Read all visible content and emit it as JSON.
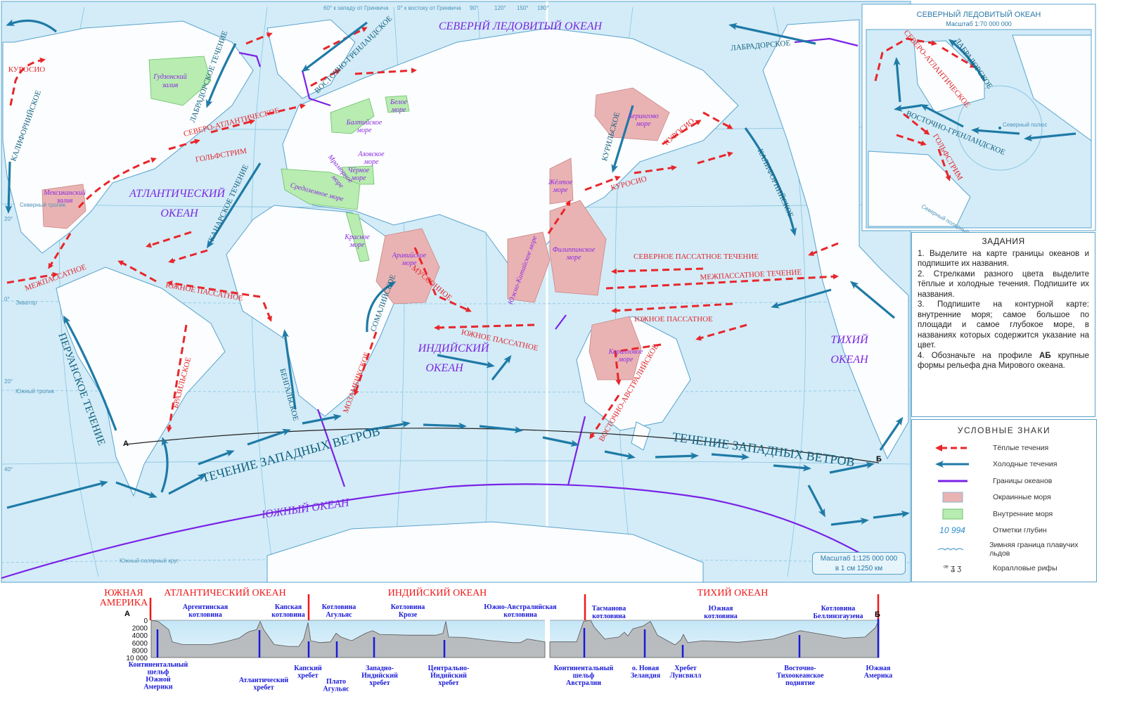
{
  "colors": {
    "warm_current": "#e8262a",
    "cold_current": "#1f7aa6",
    "ocean_boundary": "#7a22e6",
    "marginal_sea": "#eab3b3",
    "inland_sea": "#b8ecb0",
    "water": "#cfe9f6"
  },
  "map": {
    "oceans": {
      "arctic": "СЕВЕРНЙ ЛЕДОВИТЫЙ ОКЕАН",
      "atlantic_1": "АТЛАНТИЧЕСКИЙ",
      "atlantic_2": "ОКЕАН",
      "indian_1": "ИНДИЙСКИЙ",
      "indian_2": "ОКЕАН",
      "pacific_1": "ТИХИЙ",
      "pacific_2": "ОКЕАН",
      "southern": "ЮЖНЫЙ ОКЕАН"
    },
    "warm_currents": [
      "КУРОСИО",
      "СЕВЕРО-АТЛАНТИЧЕСКОЕ",
      "ГОЛЬФСТРИМ",
      "МЕЖПАССАТНОЕ",
      "ЮЖНОЕ ПАССАТНОЕ",
      "БРАЗИЛЬСКОЕ",
      "МУССОННОЕ",
      "ЮЖНОЕ ПАССАТНОЕ",
      "МОЗАМБИКСКОЕ",
      "КУРОСИО",
      "КУРОСИО",
      "СЕВЕРНОЕ ПАССАТНОЕ ТЕЧЕНИЕ",
      "МЕЖПАССАТНОЕ ТЕЧЕНИЕ",
      "ЮЖНОЕ ПАССАТНОЕ",
      "ВОСТОЧНО-АВСТРАЛИЙСКОЕ"
    ],
    "cold_currents": [
      "КАЛИФОРНИЙСКОЕ",
      "ЛАБРАДОРСКОЕ ТЕЧЕНИЕ",
      "ВОСТОЧНО-ГРЕНЛАНДСКОЕ",
      "КАНАРСКОЕ ТЕЧЕНИЕ",
      "ПЕРУАНСКОЕ ТЕЧЕНИЕ",
      "БЕНГАЛЬСКОЕ",
      "СОМАЛИЙСКОЕ",
      "ТЕЧЕНИЕ ЗАПАДНЫХ ВЕТРОВ",
      "ТЕЧЕНИЕ ЗАПАДНЫХ ВЕТРОВ",
      "КУРИЛЬСКОЕ",
      "КАЛИФОРНИЙСКОЕ",
      "ЛАБРАДОРСКОЕ"
    ],
    "seas": {
      "hudson": [
        "Гудзонский",
        "залив"
      ],
      "white": [
        "Белое",
        "море"
      ],
      "baltic": [
        "Балтийское",
        "море"
      ],
      "azov": [
        "Азовское",
        "море"
      ],
      "black": [
        "Чёрное",
        "море"
      ],
      "marmara": [
        "Мраморное",
        "море"
      ],
      "mediterranean": "Средиземное море",
      "mexico": [
        "Мексиканский",
        "залив"
      ],
      "red": [
        "Красное",
        "море"
      ],
      "arabian": [
        "Аравийское",
        "море"
      ],
      "south_china": "Южно-Китайское море",
      "philippine": [
        "Филиппинское",
        "море"
      ],
      "yellow": [
        "Жёлтое",
        "море"
      ],
      "bering": [
        "Берингово",
        "море"
      ],
      "coral": [
        "Коралловое",
        "море"
      ]
    },
    "graticule": {
      "lon_west": "60° к западу от Гринвича",
      "lon_east": "0° к востоку от Гринвича",
      "l90": "90°",
      "l120": "120°",
      "l150": "150°",
      "l180": "180°",
      "equator": "Экватор",
      "n_tropic": "Северный тропик",
      "s_tropic": "Южный тропик",
      "s_polar": "Южный полярный круг",
      "lat20n": "20°",
      "lat0": "0°",
      "lat20s": "20°",
      "lat40s": "40°"
    },
    "profile_points": {
      "a": "А",
      "b": "Б"
    },
    "scale": {
      "line1": "Масштаб 1:125 000 000",
      "line2": "в 1 см 1250 км"
    }
  },
  "inset": {
    "title": "СЕВЕРНЫЙ ЛЕДОВИТЫЙ ОКЕАН",
    "scale": "Масштаб 1:70 000 000",
    "warm": [
      "СЕВЕРО-АТЛАНТИЧЕСКОЕ",
      "ГОЛЬФСТРИМ"
    ],
    "cold": [
      "ЛАБРАДОРСКОЕ",
      "ВОСТОЧНО-ГРЕНЛАНДСКОЕ"
    ],
    "north_pole": "Северный полюс",
    "polar_circle": "Северный полярный круг"
  },
  "tasks": {
    "title": "ЗАДАНИЯ",
    "items": [
      "1. Выделите на карте границы океанов и подпишите их названия.",
      "2. Стрелками разного цвета выделите тёплые и холодные течения. Подпишите их названия.",
      "3. Подпишите на контурной карте: внутренние моря; самое большое по площади и самое глубокое море, в названиях которых содержится указание на цвет."
    ],
    "item4_prefix": "4. Обозначьте на профиле ",
    "item4_bold": "АБ",
    "item4_suffix": " крупные формы рельефа дна Мирового океана."
  },
  "legend": {
    "title": "УСЛОВНЫЕ ЗНАКИ",
    "items": [
      "Тёплые течения",
      "Холодные течения",
      "Границы океанов",
      "Окраинные моря",
      "Внутренние моря",
      "Отметки глубин",
      "Зимняя граница плавучих льдов",
      "Коралловые рифы"
    ],
    "depth_sample": "10 994"
  },
  "profile": {
    "headers": [
      "ЮЖНАЯ",
      "АМЕРИКА",
      "АТЛАНТИЧЕСКИЙ ОКЕАН",
      "ИНДИЙСКИЙ ОКЕАН",
      "ТИХИЙ ОКЕАН"
    ],
    "depth_ticks": [
      "0",
      "2000",
      "4000",
      "6000",
      "8000",
      "10 000"
    ],
    "top_labels": [
      [
        "Аргентинская",
        "котловина"
      ],
      [
        "Капская",
        "котловина"
      ],
      [
        "Котловина",
        "Агульяс"
      ],
      [
        "Котловина",
        "Крозе"
      ],
      [
        "Южно-Австралийская",
        "котловина"
      ],
      [
        "Тасманова",
        "котловина"
      ],
      [
        "Южная",
        "котловина"
      ],
      [
        "Котловина",
        "Беллинзгаузена"
      ]
    ],
    "bottom_labels": [
      [
        "Континентальный",
        "шельф",
        "Южной",
        "Америки"
      ],
      [
        "Атлантический",
        "хребет"
      ],
      [
        "Капский",
        "хребет"
      ],
      [
        "Плато",
        "Агульяс"
      ],
      [
        "Западно-",
        "Индийский",
        "хребет"
      ],
      [
        "Центрально-",
        "Индийский",
        "хребет"
      ],
      [
        "Континентальный",
        "шельф",
        "Австралии"
      ],
      [
        "о. Новая",
        "Зеландия"
      ],
      [
        "Хребет",
        "Луисвилл"
      ],
      [
        "Восточно-",
        "Тихоокеанское",
        "поднятие"
      ],
      [
        "Южная",
        "Америка"
      ]
    ]
  }
}
